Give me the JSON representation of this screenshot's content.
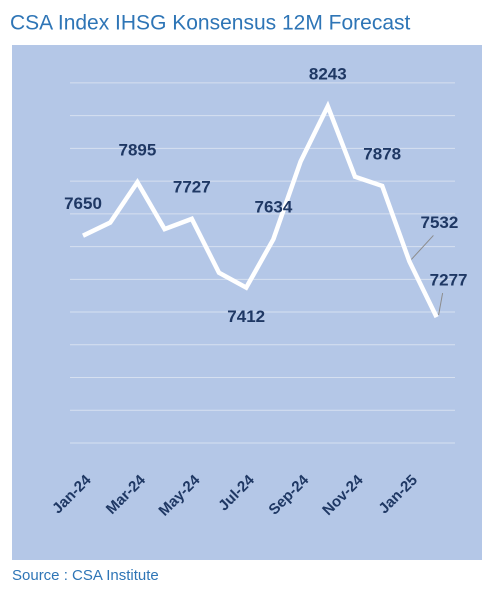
{
  "chart_data": {
    "type": "line",
    "title": "CSA Index IHSG Konsensus 12M Forecast",
    "source": "Source : CSA Institute",
    "categories": [
      "Jan-24",
      null,
      "Mar-24",
      null,
      "May-24",
      null,
      "Jul-24",
      null,
      "Sep-24",
      null,
      "Nov-24",
      null,
      "Jan-25",
      null
    ],
    "values": [
      7650,
      7710,
      7895,
      7680,
      7727,
      7480,
      7412,
      7634,
      7990,
      8243,
      7920,
      7878,
      7532,
      7277
    ],
    "value_labels": [
      "7650",
      null,
      "7895",
      null,
      "7727",
      null,
      "7412",
      "7634",
      null,
      "8243",
      null,
      "7878",
      "7532",
      "7277"
    ],
    "color": "#ffffff",
    "ylim": [
      6700,
      8400
    ],
    "yticks": [
      6700,
      6850,
      7000,
      7150,
      7300,
      7450,
      7600,
      7750,
      7900,
      8050,
      8200,
      8350
    ],
    "grid": true
  }
}
